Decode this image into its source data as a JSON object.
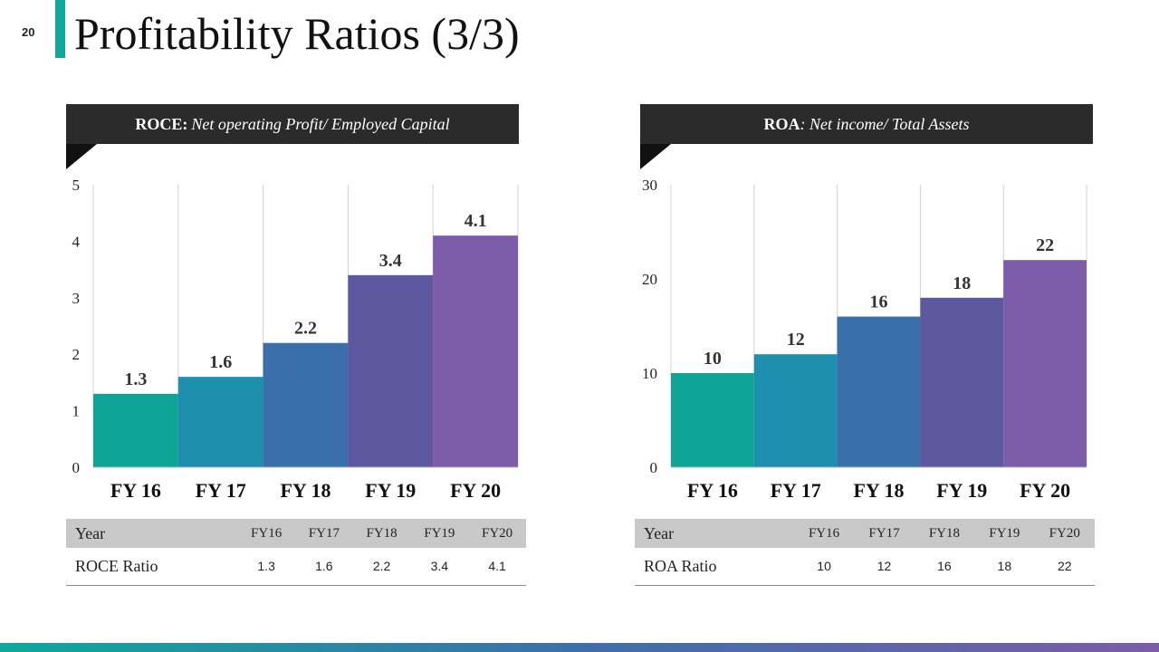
{
  "slide": {
    "number": "20",
    "title": "Profitability Ratios (3/3)"
  },
  "colors": {
    "accent": "#0fa89a",
    "bars": [
      "#0fa498",
      "#1f8fb0",
      "#3a6faa",
      "#5d58a0",
      "#7b5ca8"
    ],
    "header_bg": "#2b2b2b"
  },
  "panels": [
    {
      "header_bold": "ROCE:",
      "header_italic": "Net operating Profit/ Employed Capital",
      "table": {
        "head_label": "Year",
        "row_label": "ROCE Ratio",
        "years": [
          "FY16",
          "FY17",
          "FY18",
          "FY19",
          "FY20"
        ],
        "values": [
          "1.3",
          "1.6",
          "2.2",
          "3.4",
          "4.1"
        ]
      }
    },
    {
      "header_bold": "ROA",
      "header_italic": ": Net income/ Total Assets",
      "table": {
        "head_label": "Year",
        "row_label": "ROA Ratio",
        "years": [
          "FY16",
          "FY17",
          "FY18",
          "FY19",
          "FY20"
        ],
        "values": [
          "10",
          "12",
          "16",
          "18",
          "22"
        ]
      }
    }
  ],
  "chart_data": [
    {
      "type": "bar",
      "categories": [
        "FY 16",
        "FY 17",
        "FY 18",
        "FY 19",
        "FY 20"
      ],
      "values": [
        1.3,
        1.6,
        2.2,
        3.4,
        4.1
      ],
      "value_labels": [
        "1.3",
        "1.6",
        "2.2",
        "3.4",
        "4.1"
      ],
      "ylim": [
        0,
        5
      ],
      "yticks": [
        "0",
        "1",
        "2",
        "3",
        "4",
        "5"
      ],
      "grid": "vertical"
    },
    {
      "type": "bar",
      "categories": [
        "FY 16",
        "FY 17",
        "FY 18",
        "FY 19",
        "FY 20"
      ],
      "values": [
        10,
        12,
        16,
        18,
        22
      ],
      "value_labels": [
        "10",
        "12",
        "16",
        "18",
        "22"
      ],
      "ylim": [
        0,
        30
      ],
      "yticks": [
        "0",
        "10",
        "20",
        "30"
      ],
      "grid": "vertical"
    }
  ]
}
